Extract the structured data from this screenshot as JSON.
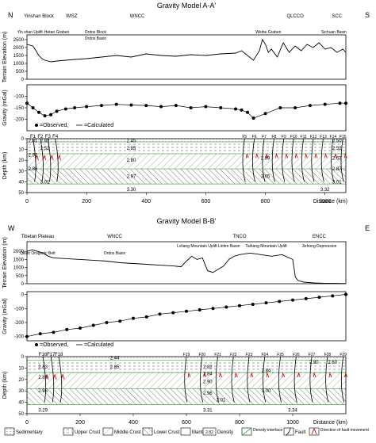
{
  "chart_data": [
    {
      "type": "line",
      "title": "Gravity Model A-A'",
      "end_labels": [
        "N",
        "S"
      ],
      "terrain": {
        "ylabel": "Terrain Elevation (m)",
        "yticks": [
          0,
          500,
          1000,
          1500,
          2000,
          2500
        ],
        "ylim": [
          0,
          2800
        ],
        "x": [
          0,
          10,
          20,
          30,
          40,
          50,
          60,
          70,
          80,
          100,
          130,
          160,
          200,
          250,
          300,
          350,
          400,
          450,
          500,
          550,
          600,
          650,
          700,
          720,
          740,
          760,
          780,
          790,
          800,
          810,
          820,
          840,
          860,
          880,
          900,
          920,
          940,
          960,
          980,
          1000,
          1020,
          1040,
          1060,
          1070
        ],
        "y": [
          2200,
          2150,
          2100,
          1800,
          1500,
          1300,
          1200,
          1150,
          1100,
          1150,
          1200,
          1250,
          1300,
          1400,
          1500,
          1400,
          1600,
          1500,
          1450,
          1550,
          1500,
          1600,
          1650,
          1800,
          1500,
          1200,
          1800,
          2500,
          2200,
          1700,
          1900,
          1400,
          2300,
          1700,
          2100,
          1800,
          2200,
          2000,
          2300,
          1900,
          2000,
          1700,
          1900,
          1700
        ]
      },
      "gravity": {
        "ylabel": "Gravity (mGal)",
        "yticks": [
          -200,
          -150,
          -100
        ],
        "ylim": [
          -250,
          -50
        ],
        "x": [
          0,
          20,
          40,
          60,
          80,
          100,
          130,
          160,
          200,
          250,
          300,
          350,
          400,
          450,
          500,
          550,
          600,
          650,
          700,
          720,
          740,
          760,
          800,
          850,
          900,
          950,
          1000,
          1050,
          1070
        ],
        "observed": [
          -130,
          -150,
          -170,
          -185,
          -180,
          -165,
          -155,
          -150,
          -145,
          -140,
          -135,
          -138,
          -140,
          -145,
          -140,
          -150,
          -145,
          -150,
          -155,
          -160,
          -170,
          -195,
          -175,
          -150,
          -150,
          -140,
          -135,
          -130,
          -130
        ],
        "legend": [
          "=Observed,",
          "=Calculated"
        ]
      },
      "section": {
        "ylabel": "Depth (km)",
        "yticks": [
          0,
          10,
          20,
          30,
          40,
          50
        ],
        "xlabel": "Distance (km)",
        "xticks": [
          0,
          200,
          400,
          600,
          800,
          1000
        ],
        "xlim": [
          0,
          1070
        ],
        "faults_left": [
          "F1",
          "F2",
          "F3",
          "F4"
        ],
        "faults_right": [
          "F5",
          "F6",
          "F7",
          "F8",
          "F9",
          "F10",
          "F11",
          "F12",
          "F13",
          "F14",
          "F15"
        ],
        "densities": [
          "2.45",
          "2.85",
          "2.80",
          "2.97",
          "3.30",
          "2.82",
          "2.52",
          "2.92",
          "2.86",
          "3.01",
          "2.50",
          "2.52",
          "2.63",
          "2.87",
          "3.01",
          "2.99",
          "3.05",
          "3.32",
          "2.81"
        ]
      },
      "regions": [
        {
          "label": "Yinshan Block",
          "x": 40
        },
        {
          "label": "IMSZ",
          "x": 150
        },
        {
          "label": "WNCC",
          "x": 370
        },
        {
          "label": "QLCCO",
          "x": 900
        },
        {
          "label": "SCC",
          "x": 1040
        }
      ],
      "sub_labels": [
        "Yin shan Uplift",
        "Hetao Graben",
        "Ordos Block",
        "Ordos Basin",
        "Weihe Graben",
        "Sichuan Basin"
      ]
    },
    {
      "type": "line",
      "title": "Gravity Model B-B'",
      "end_labels": [
        "W",
        "E"
      ],
      "terrain": {
        "ylabel": "Terrain Elevation (m)",
        "yticks": [
          0,
          500,
          1000,
          1500,
          2000
        ],
        "ylim": [
          0,
          2600
        ],
        "x": [
          0,
          20,
          40,
          60,
          80,
          100,
          150,
          200,
          250,
          300,
          350,
          400,
          450,
          500,
          550,
          580,
          600,
          620,
          640,
          660,
          680,
          700,
          720,
          740,
          760,
          780,
          800,
          840,
          880,
          920,
          960,
          1000,
          1010,
          1020,
          1040,
          1080,
          1120,
          1160,
          1200
        ],
        "y": [
          2000,
          2100,
          2000,
          1900,
          1700,
          1600,
          1550,
          1500,
          1450,
          1400,
          1300,
          1250,
          1200,
          1150,
          1100,
          1050,
          1400,
          1700,
          1500,
          1600,
          800,
          700,
          900,
          1100,
          1500,
          1700,
          1800,
          1900,
          1800,
          1700,
          1800,
          1500,
          400,
          200,
          100,
          50,
          30,
          20,
          10
        ]
      },
      "gravity": {
        "ylabel": "Gravity (mGal)",
        "yticks": [
          -300,
          -200,
          -100,
          0
        ],
        "ylim": [
          -330,
          20
        ],
        "x": [
          0,
          50,
          100,
          150,
          200,
          250,
          300,
          350,
          400,
          450,
          500,
          550,
          600,
          650,
          700,
          750,
          800,
          850,
          900,
          950,
          1000,
          1050,
          1100,
          1150,
          1200
        ],
        "observed": [
          -300,
          -280,
          -270,
          -250,
          -240,
          -220,
          -200,
          -190,
          -170,
          -160,
          -140,
          -130,
          -120,
          -110,
          -100,
          -90,
          -80,
          -70,
          -60,
          -50,
          -40,
          -30,
          -20,
          -10,
          0
        ],
        "legend": [
          "=Observed,",
          "=Calculated"
        ]
      },
      "section": {
        "ylabel": "Depth (km)",
        "yticks": [
          0,
          10,
          20,
          30,
          40,
          50
        ],
        "xlabel": "Distance (km)",
        "xticks": [
          0,
          200,
          400,
          600,
          800,
          1000
        ],
        "xlim": [
          0,
          1200
        ],
        "faults_left": [
          "F16",
          "F17",
          "F18"
        ],
        "faults_right": [
          "F19",
          "F20",
          "F21",
          "F22",
          "F23",
          "F24",
          "F25",
          "F26",
          "F27",
          "F28",
          "F29"
        ],
        "densities": [
          "2.44",
          "2.85",
          "2.83",
          "2.86",
          "2.96",
          "3.29",
          "2.82",
          "2.84",
          "2.90",
          "2.96",
          "3.01",
          "3.31",
          "2.84",
          "3.00",
          "3.34",
          "2.80",
          "2.60"
        ]
      },
      "regions": [
        {
          "label": "Tibetan Plateau",
          "x": 40
        },
        {
          "label": "WNCC",
          "x": 330
        },
        {
          "label": "TNCO",
          "x": 800
        },
        {
          "label": "ENCC",
          "x": 1100
        }
      ],
      "sub_labels": [
        "Qilian Orogenic Belt",
        "Ordos Basin",
        "Lvliang Mountain Uplift",
        "Linfen Basin",
        "Taihang Mountain Uplift",
        "Jizhong Depression"
      ]
    }
  ],
  "legend": {
    "items": [
      "Sedimentary",
      "Upper Crust",
      "Middle Crust",
      "Lower Crust",
      "Mantle",
      "Density",
      "Density interface",
      "Fault",
      "Direction of fault movement"
    ],
    "density_sample": "2.82"
  },
  "colors": {
    "fault_arrow": "#cc0000",
    "interface": "#44aa44",
    "series": "#000000"
  }
}
